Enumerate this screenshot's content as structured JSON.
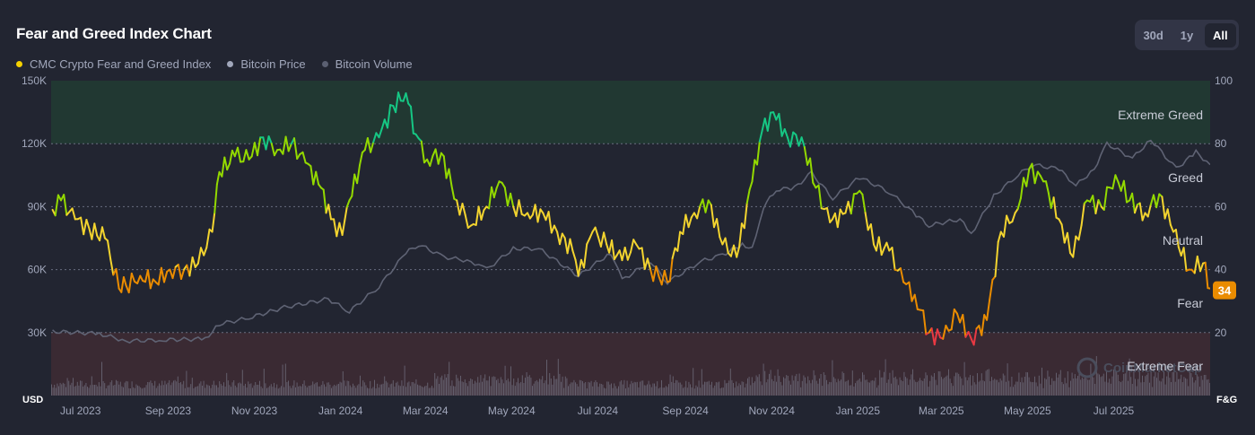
{
  "header": {
    "title": "Fear and Greed Index Chart",
    "ranges": [
      "30d",
      "1y",
      "All"
    ],
    "active_range": "All"
  },
  "legend": [
    {
      "label": "CMC Crypto Fear and Greed Index",
      "color": "#f5d100"
    },
    {
      "label": "Bitcoin Price",
      "color": "#a1a7bb"
    },
    {
      "label": "Bitcoin Volume",
      "color": "#5b6072"
    }
  ],
  "colors": {
    "extreme_fear": "#ea3943",
    "fear": "#ea8c00",
    "neutral": "#f3d42f",
    "greed": "#93d900",
    "extreme_greed": "#16c784",
    "price_line": "#5f6374",
    "volume_bars": "#6b6777"
  },
  "watermark": "CoinMarketCap",
  "chart_data": {
    "type": "line",
    "title": "Fear and Greed Index Chart",
    "x_ticks": [
      "Jul 2023",
      "Sep 2023",
      "Nov 2023",
      "Jan 2024",
      "Mar 2024",
      "May 2024",
      "Jul 2024",
      "Sep 2024",
      "Nov 2024",
      "Jan 2025",
      "Mar 2025",
      "May 2025",
      "Jul 2025"
    ],
    "left_axis": {
      "unit": "USD",
      "ticks": [
        "30K",
        "60K",
        "90K",
        "120K",
        "150K"
      ],
      "values": [
        30000,
        60000,
        90000,
        120000,
        150000
      ],
      "range": [
        0,
        150000
      ]
    },
    "right_axis": {
      "unit": "F&G",
      "ticks": [
        "20",
        "40",
        "60",
        "80",
        "100"
      ],
      "values": [
        20,
        40,
        60,
        80,
        100
      ],
      "range": [
        0,
        100
      ]
    },
    "zones": [
      {
        "label": "Extreme Greed",
        "range": [
          80,
          100
        ]
      },
      {
        "label": "Greed",
        "range": [
          60,
          80
        ]
      },
      {
        "label": "Neutral",
        "range": [
          40,
          60
        ]
      },
      {
        "label": "Fear",
        "range": [
          20,
          40
        ]
      },
      {
        "label": "Extreme Fear",
        "range": [
          0,
          20
        ]
      }
    ],
    "current_value": "34",
    "series": [
      {
        "name": "CMC Crypto Fear and Greed Index",
        "x": [
          "2023-06-29",
          "2023-07-05",
          "2023-07-15",
          "2023-07-25",
          "2023-08-05",
          "2023-08-15",
          "2023-08-20",
          "2023-08-30",
          "2023-09-10",
          "2023-09-20",
          "2023-09-30",
          "2023-10-10",
          "2023-10-20",
          "2023-10-25",
          "2023-11-05",
          "2023-11-15",
          "2023-11-25",
          "2023-12-05",
          "2023-12-15",
          "2023-12-25",
          "2024-01-05",
          "2024-01-12",
          "2024-01-20",
          "2024-01-25",
          "2024-02-05",
          "2024-02-15",
          "2024-02-25",
          "2024-03-05",
          "2024-03-12",
          "2024-03-20",
          "2024-03-30",
          "2024-04-10",
          "2024-04-20",
          "2024-05-01",
          "2024-05-10",
          "2024-05-20",
          "2024-05-30",
          "2024-06-10",
          "2024-06-20",
          "2024-07-01",
          "2024-07-05",
          "2024-07-15",
          "2024-07-25",
          "2024-08-05",
          "2024-08-15",
          "2024-08-25",
          "2024-09-06",
          "2024-09-15",
          "2024-09-25",
          "2024-10-05",
          "2024-10-15",
          "2024-10-25",
          "2024-11-05",
          "2024-11-12",
          "2024-11-20",
          "2024-11-30",
          "2024-12-10",
          "2024-12-20",
          "2024-12-30",
          "2025-01-10",
          "2025-01-20",
          "2025-01-30",
          "2025-02-10",
          "2025-02-20",
          "2025-02-28",
          "2025-03-10",
          "2025-03-20",
          "2025-03-30",
          "2025-04-09",
          "2025-04-20",
          "2025-04-30",
          "2025-05-10",
          "2025-05-20",
          "2025-05-30",
          "2025-06-10",
          "2025-06-20",
          "2025-06-30",
          "2025-07-10",
          "2025-07-20",
          "2025-07-30",
          "2025-08-10",
          "2025-08-20",
          "2025-08-30",
          "2025-09-10",
          "2025-09-20",
          "2025-09-25"
        ],
        "values": [
          59,
          62,
          56,
          53,
          50,
          34,
          35,
          38,
          36,
          40,
          40,
          42,
          52,
          71,
          76,
          75,
          82,
          78,
          80,
          74,
          66,
          56,
          51,
          62,
          78,
          82,
          92,
          96,
          83,
          75,
          77,
          62,
          54,
          60,
          68,
          60,
          58,
          58,
          52,
          46,
          38,
          52,
          48,
          43,
          48,
          40,
          36,
          52,
          58,
          62,
          48,
          44,
          68,
          84,
          90,
          82,
          82,
          66,
          55,
          58,
          65,
          48,
          46,
          36,
          32,
          20,
          18,
          26,
          18,
          24,
          52,
          58,
          72,
          68,
          56,
          44,
          62,
          60,
          70,
          62,
          58,
          64,
          52,
          40,
          42,
          34
        ]
      },
      {
        "name": "Bitcoin Price",
        "x": [
          "2023-06-29",
          "2023-08-01",
          "2023-08-20",
          "2023-09-15",
          "2023-10-15",
          "2023-10-25",
          "2023-11-15",
          "2023-12-10",
          "2024-01-10",
          "2024-01-25",
          "2024-02-15",
          "2024-03-05",
          "2024-03-14",
          "2024-04-01",
          "2024-04-20",
          "2024-05-01",
          "2024-05-20",
          "2024-06-07",
          "2024-07-05",
          "2024-07-28",
          "2024-08-05",
          "2024-08-25",
          "2024-09-06",
          "2024-09-30",
          "2024-10-15",
          "2024-10-29",
          "2024-11-05",
          "2024-11-13",
          "2024-11-22",
          "2024-12-05",
          "2024-12-17",
          "2025-01-01",
          "2025-01-20",
          "2025-02-10",
          "2025-03-01",
          "2025-03-10",
          "2025-04-01",
          "2025-04-09",
          "2025-04-25",
          "2025-05-10",
          "2025-05-22",
          "2025-06-10",
          "2025-06-22",
          "2025-07-05",
          "2025-07-14",
          "2025-08-01",
          "2025-08-14",
          "2025-09-01",
          "2025-09-15",
          "2025-09-25"
        ],
        "values": [
          30500,
          29500,
          26000,
          26500,
          27000,
          34000,
          37000,
          42000,
          46000,
          40000,
          52000,
          68000,
          72000,
          66000,
          64000,
          60000,
          70000,
          70000,
          57000,
          68000,
          55000,
          64000,
          54000,
          64000,
          67000,
          72000,
          70000,
          90000,
          98000,
          99000,
          106000,
          94000,
          104000,
          97000,
          86000,
          81000,
          84000,
          77000,
          95000,
          104000,
          110000,
          108000,
          100000,
          108000,
          120000,
          113000,
          122000,
          108000,
          116000,
          110000
        ]
      },
      {
        "name": "Bitcoin Volume",
        "range": [
          0,
          1
        ]
      }
    ]
  }
}
